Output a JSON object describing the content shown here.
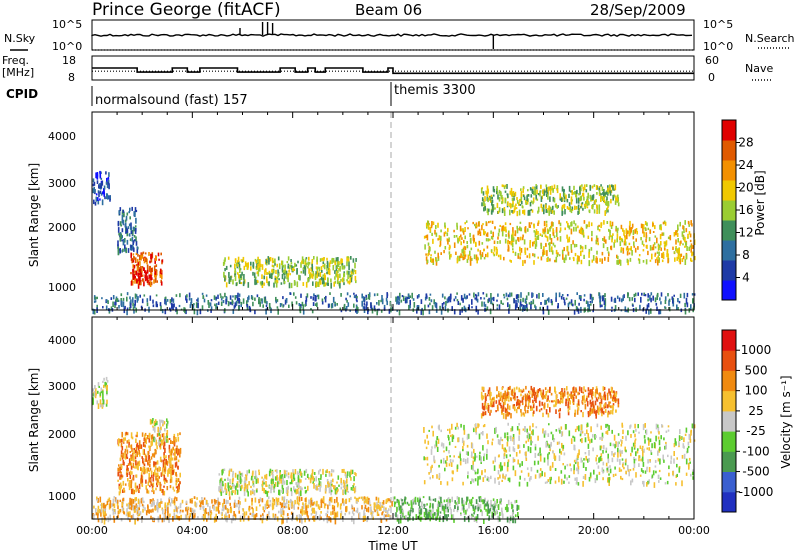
{
  "header": {
    "station": "Prince George (fitACF)",
    "beam": "Beam 06",
    "date": "28/Sep/2009"
  },
  "top_panels": {
    "nsky_label": "N.Sky",
    "nsearch_label": "N.Search",
    "nsky_ticks": [
      "10^5",
      "10^0"
    ],
    "nsearch_ticks": [
      "10^5",
      "10^0"
    ],
    "freq_label_line1": "Freq.",
    "freq_label_line2": "[MHz]",
    "freq_ticks": [
      "18",
      "8"
    ],
    "nave_label": "Nave",
    "nave_ticks": [
      "60",
      "0"
    ],
    "cpid_label": "CPID",
    "cpid_entries": [
      {
        "name": "normalsound (fast) 157",
        "start_hour": 0
      },
      {
        "name": "themis 3300",
        "start_hour": 12
      }
    ],
    "freq_mhz_steps": [
      {
        "t0": 0,
        "t1": 1.8,
        "f": 13.0
      },
      {
        "t0": 1.8,
        "t1": 3.2,
        "f": 11.3
      },
      {
        "t0": 3.2,
        "t1": 3.8,
        "f": 13.0
      },
      {
        "t0": 3.8,
        "t1": 4.3,
        "f": 11.3
      },
      {
        "t0": 4.3,
        "t1": 5.8,
        "f": 13.0
      },
      {
        "t0": 5.8,
        "t1": 7.5,
        "f": 11.3
      },
      {
        "t0": 7.5,
        "t1": 8.1,
        "f": 13.0
      },
      {
        "t0": 8.1,
        "t1": 8.6,
        "f": 11.3
      },
      {
        "t0": 8.6,
        "t1": 8.9,
        "f": 13.0
      },
      {
        "t0": 8.9,
        "t1": 9.3,
        "f": 11.3
      },
      {
        "t0": 9.3,
        "t1": 10.8,
        "f": 13.0
      },
      {
        "t0": 10.8,
        "t1": 11.8,
        "f": 11.3
      },
      {
        "t0": 11.8,
        "t1": 12.0,
        "f": 13.0
      },
      {
        "t0": 12.0,
        "t1": 24.0,
        "f": 10.8
      }
    ],
    "nave_ref": 22
  },
  "chart_data": [
    {
      "type": "heatmap",
      "name": "power",
      "ylabel": "Slant Range [km]",
      "xlabel": "",
      "yticks": [
        "1000",
        "2000",
        "3000",
        "4000"
      ],
      "ylim": [
        200,
        4600
      ],
      "xlim": [
        0,
        24
      ],
      "colorbar_label": "Power [dB]",
      "colorbar_ticks": [
        "4",
        "8",
        "12",
        "16",
        "20",
        "24",
        "28"
      ],
      "colorbar_range": [
        0,
        32
      ],
      "colors": [
        "#1010ff",
        "#1e3aa6",
        "#2e6fa0",
        "#3f8f5a",
        "#9acd32",
        "#f0c800",
        "#f39000",
        "#e05a00",
        "#e00000"
      ],
      "echo_regions": [
        {
          "t0": 0.0,
          "t1": 0.7,
          "r0": 2600,
          "r1": 3300,
          "level": 1
        },
        {
          "t0": 1.0,
          "t1": 1.8,
          "r0": 1500,
          "r1": 2500,
          "level": 2
        },
        {
          "t0": 1.5,
          "t1": 2.8,
          "r0": 800,
          "r1": 1500,
          "level": 7
        },
        {
          "t0": 1.6,
          "t1": 2.4,
          "r0": 900,
          "r1": 1200,
          "level": 8
        },
        {
          "t0": 5.2,
          "t1": 10.5,
          "r0": 800,
          "r1": 1400,
          "level": 4
        },
        {
          "t0": 0.0,
          "t1": 24.0,
          "r0": 200,
          "r1": 600,
          "level": 2
        },
        {
          "t0": 13.2,
          "t1": 24.0,
          "r0": 1300,
          "r1": 2200,
          "level": 5
        },
        {
          "t0": 15.5,
          "t1": 21.0,
          "r0": 2400,
          "r1": 3000,
          "level": 4
        }
      ]
    },
    {
      "type": "heatmap",
      "name": "velocity",
      "ylabel": "Slant Range [km]",
      "xlabel": "Time UT",
      "yticks": [
        "1000",
        "2000",
        "3000",
        "4000"
      ],
      "ylim": [
        200,
        4600
      ],
      "xlim": [
        0,
        24
      ],
      "xticks": [
        "00:00",
        "04:00",
        "08:00",
        "12:00",
        "16:00",
        "20:00",
        "00:00"
      ],
      "colorbar_label": "Velocity [m s⁻¹]",
      "colorbar_ticks": [
        "1000",
        "500",
        "100",
        "25",
        "-25",
        "-100",
        "-500",
        "-1000"
      ],
      "colors": [
        "#2030c0",
        "#3a5fd0",
        "#4a9a50",
        "#5ccc30",
        "#c8c8c8",
        "#f6c030",
        "#f08a10",
        "#e85010",
        "#e01010"
      ],
      "echo_regions": [
        {
          "t0": 0.0,
          "t1": 0.6,
          "r0": 2700,
          "r1": 3300,
          "level": 4
        },
        {
          "t0": 1.0,
          "t1": 3.5,
          "r0": 800,
          "r1": 2100,
          "level": 6
        },
        {
          "t0": 2.3,
          "t1": 3.0,
          "r0": 1900,
          "r1": 2400,
          "level": 4
        },
        {
          "t0": 5.0,
          "t1": 10.5,
          "r0": 800,
          "r1": 1300,
          "level": 4
        },
        {
          "t0": 0.0,
          "t1": 12.0,
          "r0": 200,
          "r1": 700,
          "level": 5
        },
        {
          "t0": 12.0,
          "t1": 17.0,
          "r0": 200,
          "r1": 700,
          "level": 3
        },
        {
          "t0": 13.2,
          "t1": 24.0,
          "r0": 1000,
          "r1": 2300,
          "level": 4
        },
        {
          "t0": 15.5,
          "t1": 21.0,
          "r0": 2500,
          "r1": 3100,
          "level": 6
        }
      ]
    }
  ],
  "axes": {
    "xticks": [
      "00:00",
      "04:00",
      "08:00",
      "12:00",
      "16:00",
      "20:00",
      "00:00"
    ],
    "xlabel": "Time UT"
  }
}
